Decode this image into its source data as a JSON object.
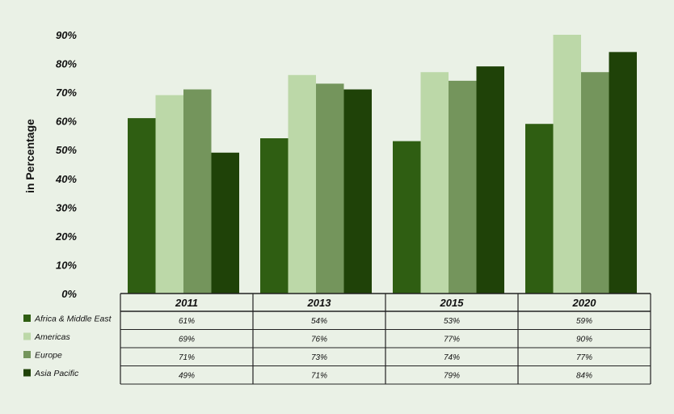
{
  "chart_data": {
    "type": "bar",
    "title": "",
    "xlabel": "",
    "ylabel": "in Percentage",
    "ylim": [
      0,
      90
    ],
    "yticks": [
      "0%",
      "10%",
      "20%",
      "30%",
      "40%",
      "50%",
      "60%",
      "70%",
      "80%",
      "90%"
    ],
    "categories": [
      "2011",
      "2013",
      "2015",
      "2020"
    ],
    "series": [
      {
        "name": "Africa & Middle East",
        "color": "#2f5e12",
        "values": [
          61,
          54,
          53,
          59
        ],
        "labels": [
          "61%",
          "54%",
          "53%",
          "59%"
        ]
      },
      {
        "name": "Americas",
        "color": "#bcd8a8",
        "values": [
          69,
          76,
          77,
          90
        ],
        "labels": [
          "69%",
          "76%",
          "77%",
          "90%"
        ]
      },
      {
        "name": "Europe",
        "color": "#74955c",
        "values": [
          71,
          73,
          74,
          77
        ],
        "labels": [
          "71%",
          "73%",
          "74%",
          "77%"
        ]
      },
      {
        "name": "Asia Pacific",
        "color": "#1f4208",
        "values": [
          49,
          71,
          79,
          84
        ],
        "labels": [
          "49%",
          "71%",
          "79%",
          "84%"
        ]
      }
    ],
    "grid": false,
    "legend": "left of data table"
  }
}
